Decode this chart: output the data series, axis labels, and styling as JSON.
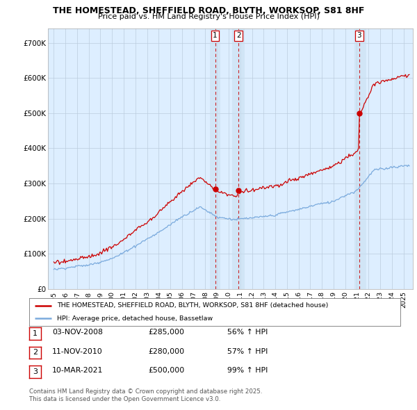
{
  "title": "THE HOMESTEAD, SHEFFIELD ROAD, BLYTH, WORKSOP, S81 8HF",
  "subtitle": "Price paid vs. HM Land Registry's House Price Index (HPI)",
  "ylabel_ticks": [
    "£0",
    "£100K",
    "£200K",
    "£300K",
    "£400K",
    "£500K",
    "£600K",
    "£700K"
  ],
  "ytick_values": [
    0,
    100000,
    200000,
    300000,
    400000,
    500000,
    600000,
    700000
  ],
  "ylim": [
    0,
    740000
  ],
  "xlim_start": 1994.5,
  "xlim_end": 2025.8,
  "legend_line1": "THE HOMESTEAD, SHEFFIELD ROAD, BLYTH, WORKSOP, S81 8HF (detached house)",
  "legend_line2": "HPI: Average price, detached house, Bassetlaw",
  "transactions": [
    {
      "num": 1,
      "date": "03-NOV-2008",
      "price": "£285,000",
      "hpi": "56% ↑ HPI",
      "year": 2008.84
    },
    {
      "num": 2,
      "date": "11-NOV-2010",
      "price": "£280,000",
      "hpi": "57% ↑ HPI",
      "year": 2010.86
    },
    {
      "num": 3,
      "date": "10-MAR-2021",
      "price": "£500,000",
      "hpi": "99% ↑ HPI",
      "year": 2021.19
    }
  ],
  "footnote1": "Contains HM Land Registry data © Crown copyright and database right 2025.",
  "footnote2": "This data is licensed under the Open Government Licence v3.0.",
  "red_color": "#cc0000",
  "blue_color": "#7aaadd",
  "plot_bg_color": "#ddeeff",
  "background_color": "#ffffff",
  "grid_color": "#bbccdd",
  "span_color": "#c8dff0"
}
